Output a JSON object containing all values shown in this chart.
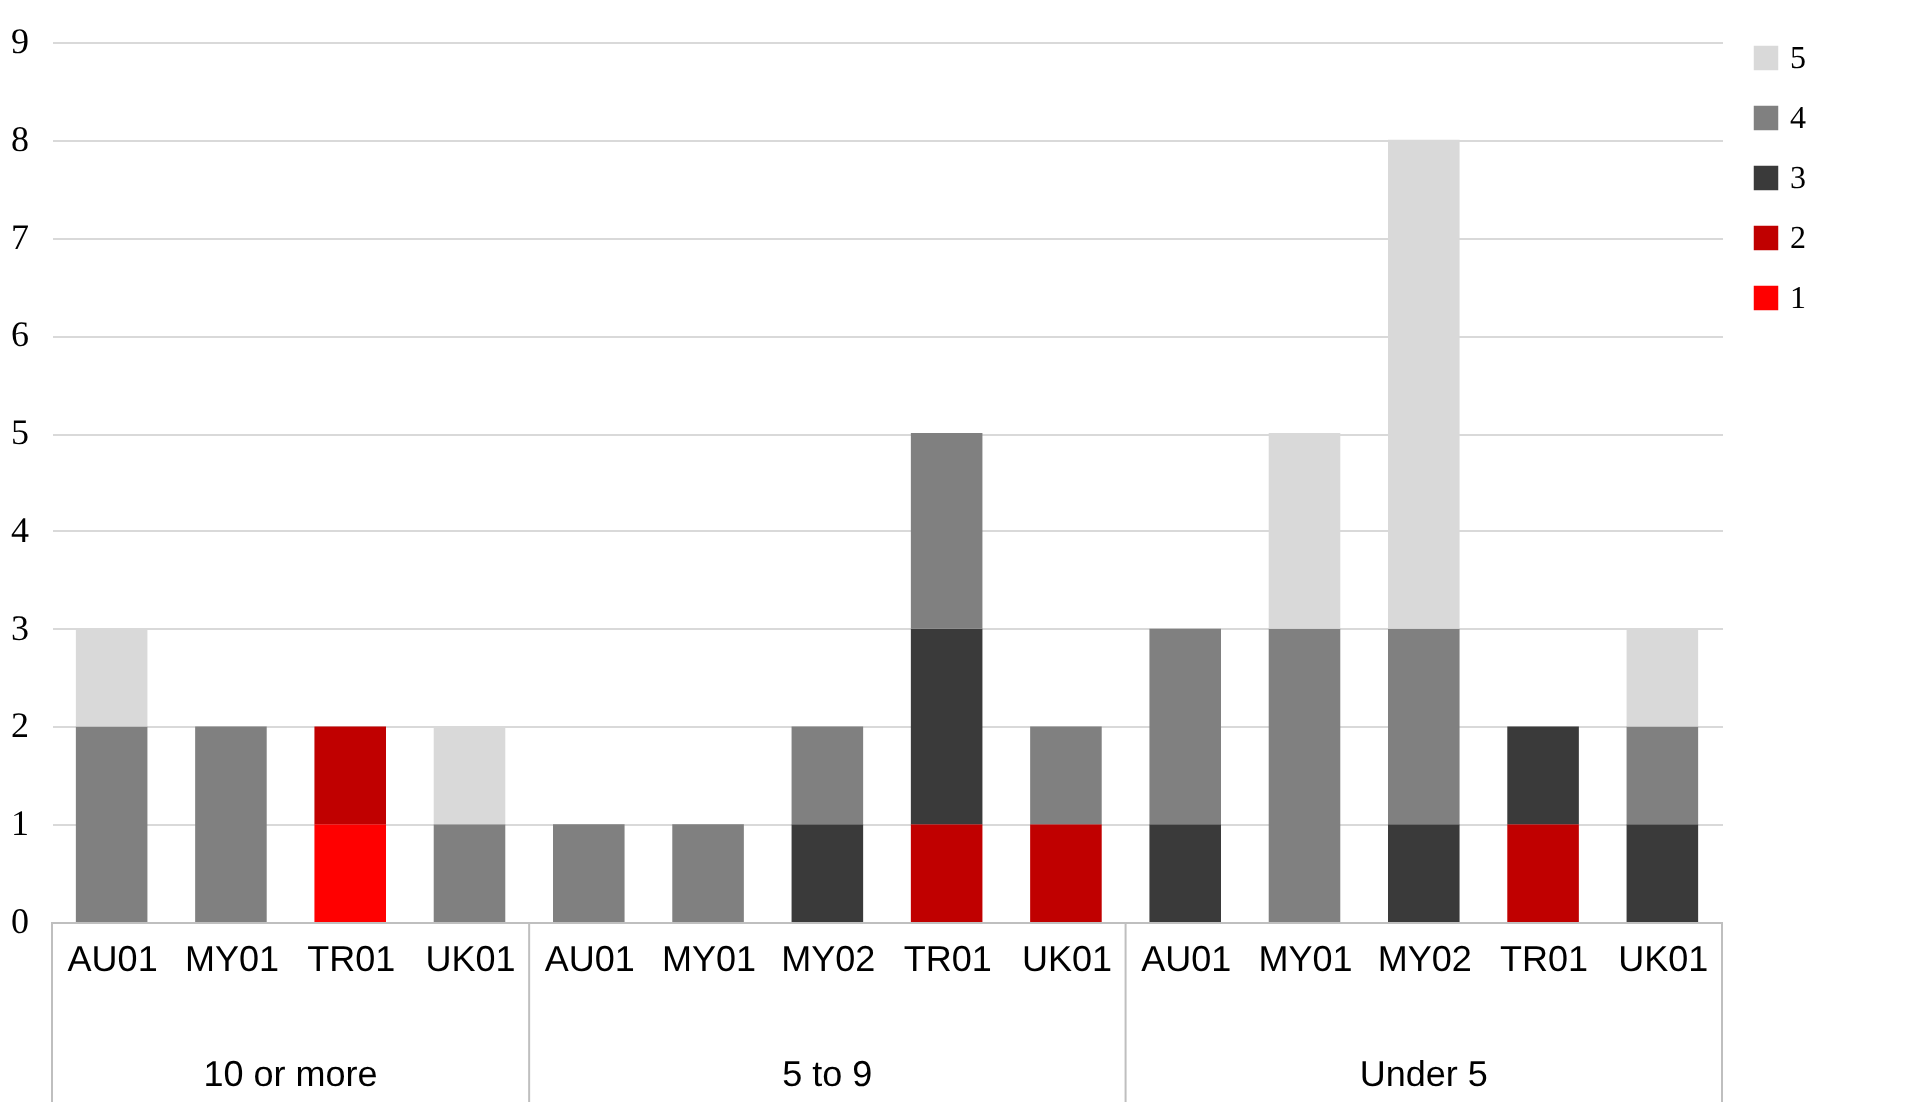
{
  "chart_data": {
    "type": "bar",
    "stacked": true,
    "categories": [
      "AU01",
      "MY01",
      "TR01",
      "UK01",
      "AU01",
      "MY01",
      "MY02",
      "TR01",
      "UK01",
      "AU01",
      "MY01",
      "MY02",
      "TR01",
      "UK01"
    ],
    "annotations": [
      "10 or more",
      "5 to 9",
      "Under 5"
    ],
    "series": [
      {
        "name": "1",
        "color": "#ff0000",
        "values": [
          null,
          null,
          1,
          null,
          null,
          null,
          null,
          null,
          null,
          null,
          null,
          null,
          null,
          null
        ]
      },
      {
        "name": "2",
        "color": "#c00000",
        "values": [
          null,
          null,
          1,
          null,
          null,
          null,
          null,
          1,
          1,
          null,
          null,
          null,
          1,
          null
        ]
      },
      {
        "name": "3",
        "color": "#3a3a3a",
        "values": [
          null,
          null,
          null,
          null,
          null,
          null,
          1,
          2,
          null,
          1,
          null,
          1,
          1,
          1
        ]
      },
      {
        "name": "4",
        "color": "#808080",
        "values": [
          2,
          2,
          null,
          1,
          1,
          1,
          1,
          2,
          1,
          2,
          3,
          2,
          null,
          1
        ]
      },
      {
        "name": "5",
        "color": "#d9d9d9",
        "values": [
          1,
          null,
          null,
          1,
          null,
          null,
          null,
          null,
          null,
          null,
          2,
          5,
          null,
          1
        ]
      }
    ],
    "ylim": [
      0,
      9
    ],
    "yticks": [
      0,
      1,
      2,
      3,
      4,
      5,
      6,
      7,
      8,
      9
    ],
    "grid": "y",
    "legend": "right"
  }
}
